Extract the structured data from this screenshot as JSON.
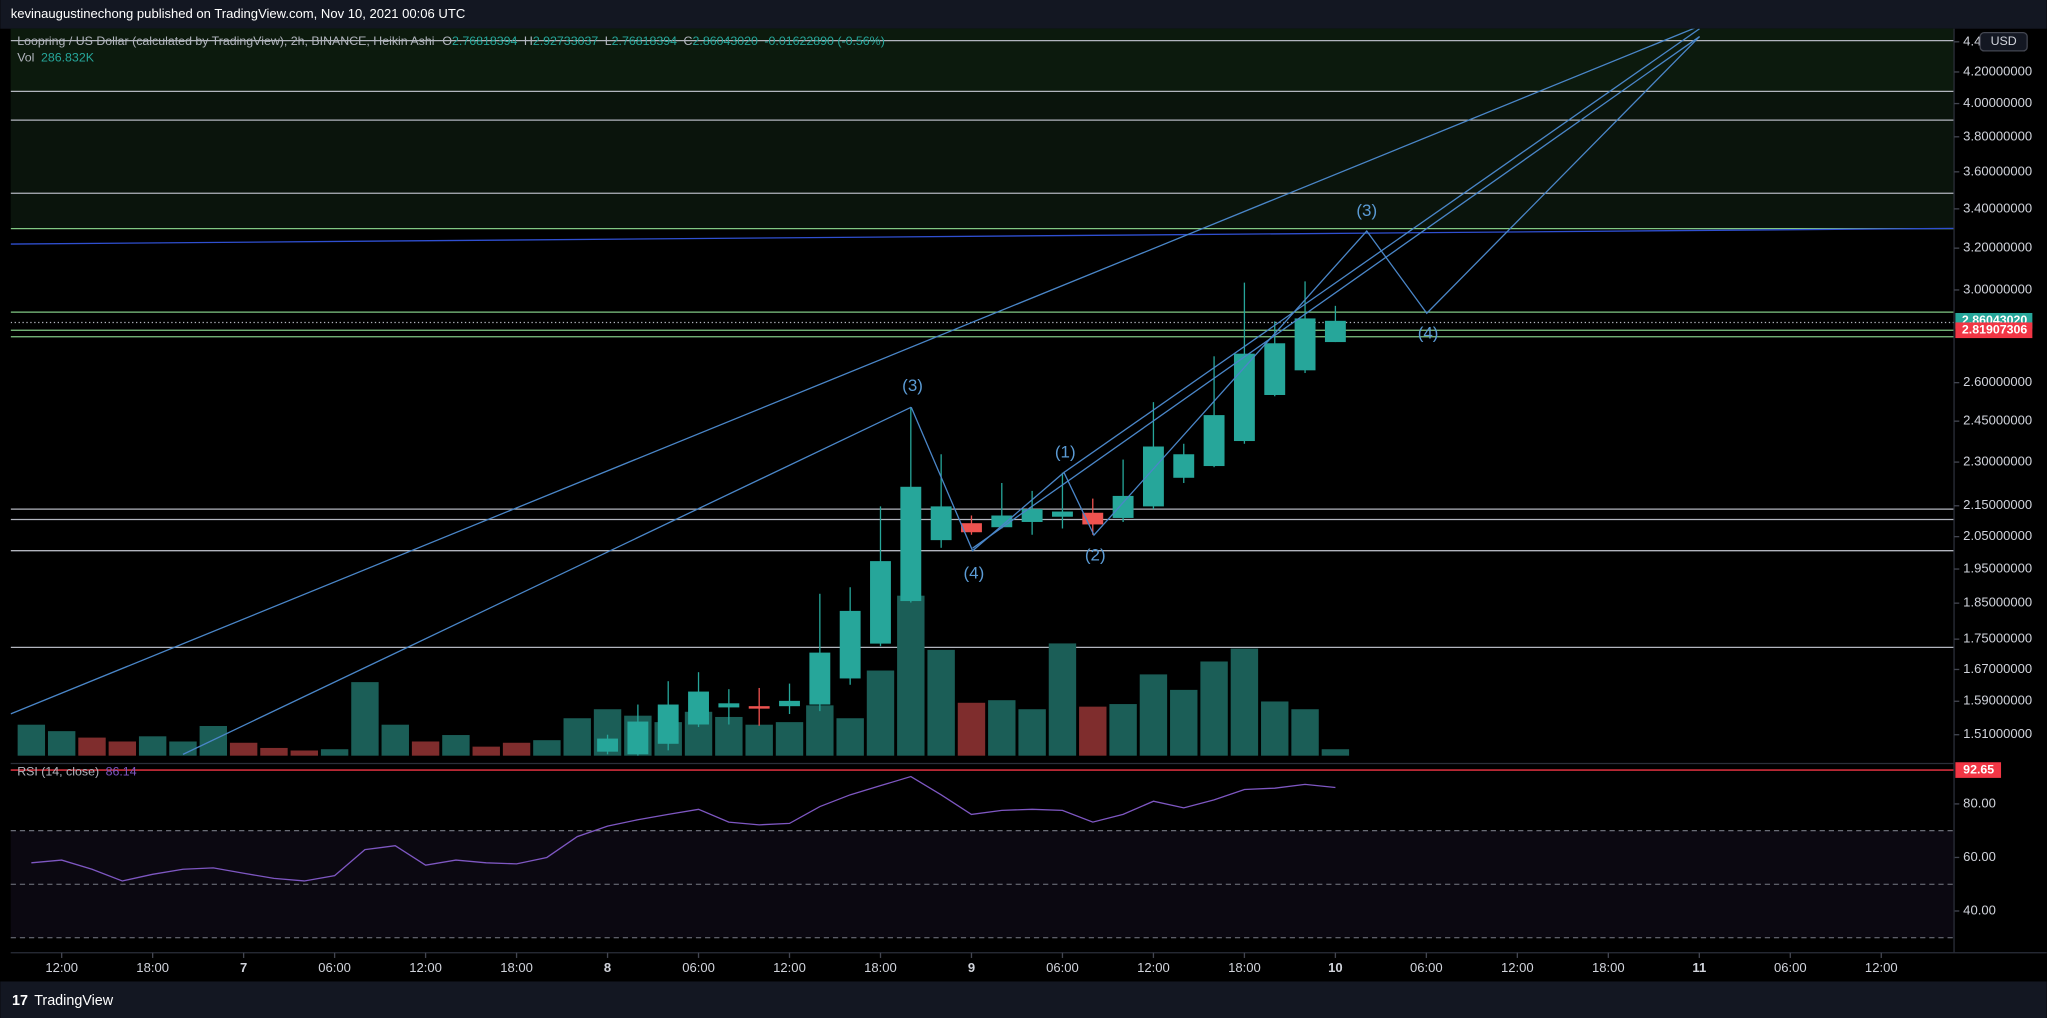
{
  "header": {
    "publisher": "kevinaugustinechong published on TradingView.com, Nov 10, 2021 00:06 UTC"
  },
  "footer": {
    "brand": "TradingView"
  },
  "chart_data": {
    "type": "candlestick",
    "title": "Loopring / US Dollar (calculated by TradingView), 2h, BINANCE, Heikin Ashi",
    "ohlc_legend": [
      {
        "key": "O",
        "value": "2.76818394"
      },
      {
        "key": "H",
        "value": "2.92733037"
      },
      {
        "key": "L",
        "value": "2.76818394"
      },
      {
        "key": "C",
        "value": "2.86043020"
      }
    ],
    "change": "-0.01622890 (-0.56%)",
    "currency": "USD",
    "x": [
      48,
      50,
      52,
      54,
      56,
      58,
      60,
      62,
      64,
      66,
      68,
      70,
      72,
      74,
      76,
      78,
      80,
      82,
      84,
      86,
      88,
      90,
      92,
      94,
      96
    ],
    "open": [
      1.471,
      1.465,
      1.489,
      1.534,
      1.575,
      1.578,
      1.578,
      1.582,
      1.647,
      1.738,
      1.856,
      2.039,
      2.093,
      2.08,
      2.097,
      2.114,
      2.127,
      2.11,
      2.148,
      2.245,
      2.286,
      2.376,
      2.551,
      2.65,
      2.76818394
    ],
    "high": [
      1.51,
      1.582,
      1.64,
      1.663,
      1.62,
      1.623,
      1.634,
      1.877,
      1.896,
      2.148,
      2.503,
      2.328,
      2.118,
      2.227,
      2.2,
      2.263,
      2.174,
      2.309,
      2.523,
      2.366,
      2.708,
      3.034,
      2.858,
      3.04,
      2.92733037
    ],
    "low": [
      1.465,
      1.462,
      1.474,
      1.528,
      1.534,
      1.531,
      1.559,
      1.566,
      1.631,
      1.731,
      1.852,
      2.015,
      2.056,
      2.076,
      2.056,
      2.076,
      2.056,
      2.097,
      2.139,
      2.227,
      2.282,
      2.366,
      2.546,
      2.639,
      2.76818394
    ],
    "close": [
      1.501,
      1.541,
      1.582,
      1.614,
      1.585,
      1.572,
      1.591,
      1.714,
      1.828,
      1.974,
      2.214,
      2.148,
      2.064,
      2.118,
      2.139,
      2.131,
      2.089,
      2.183,
      2.356,
      2.328,
      2.473,
      2.719,
      2.763,
      2.871,
      2.8604302
    ],
    "up_color": "#26a69a",
    "down_color": "#ef5350",
    "xlim": [
      8.64,
      136.8
    ],
    "xticks": [
      {
        "value": 12,
        "label": "12:00"
      },
      {
        "value": 18,
        "label": "18:00"
      },
      {
        "value": 24,
        "label": "7"
      },
      {
        "value": 30,
        "label": "06:00"
      },
      {
        "value": 36,
        "label": "12:00"
      },
      {
        "value": 42,
        "label": "18:00"
      },
      {
        "value": 48,
        "label": "8"
      },
      {
        "value": 54,
        "label": "06:00"
      },
      {
        "value": 60,
        "label": "12:00"
      },
      {
        "value": 66,
        "label": "18:00"
      },
      {
        "value": 72,
        "label": "9"
      },
      {
        "value": 78,
        "label": "06:00"
      },
      {
        "value": 84,
        "label": "12:00"
      },
      {
        "value": 90,
        "label": "18:00"
      },
      {
        "value": 96,
        "label": "10"
      },
      {
        "value": 102,
        "label": "06:00"
      },
      {
        "value": 108,
        "label": "12:00"
      },
      {
        "value": 114,
        "label": "18:00"
      },
      {
        "value": 120,
        "label": "11"
      },
      {
        "value": 126,
        "label": "06:00"
      },
      {
        "value": 132,
        "label": "12:00"
      }
    ],
    "ylim": [
      1.459,
      4.49
    ],
    "log_scale": true,
    "grid": false,
    "yticks": [
      4.4,
      {
        "value": 4.2,
        "label": "4.20000000"
      },
      {
        "value": 4.0,
        "label": "4.00000000"
      },
      {
        "value": 3.8,
        "label": "3.80000000"
      },
      {
        "value": 3.6,
        "label": "3.60000000"
      },
      {
        "value": 3.4,
        "label": "3.40000000"
      },
      {
        "value": 3.2,
        "label": "3.20000000"
      },
      {
        "value": 3.0,
        "label": "3.00000000"
      },
      {
        "value": 2.6,
        "label": "2.60000000"
      },
      {
        "value": 2.45,
        "label": "2.45000000"
      },
      {
        "value": 2.3,
        "label": "2.30000000"
      },
      {
        "value": 2.15,
        "label": "2.15000000"
      },
      {
        "value": 2.05,
        "label": "2.05000000"
      },
      {
        "value": 1.95,
        "label": "1.95000000"
      },
      {
        "value": 1.85,
        "label": "1.85000000"
      },
      {
        "value": 1.75,
        "label": "1.75000000"
      },
      {
        "value": 1.67,
        "label": "1.67000000"
      },
      {
        "value": 1.59,
        "label": "1.59000000"
      },
      {
        "value": 1.51,
        "label": "1.51000000"
      }
    ],
    "price_labels": [
      {
        "value": 2.8604302,
        "label": "2.86043020",
        "color": "#26a69a"
      },
      {
        "value": 2.81907306,
        "label": "2.81907306",
        "color": "#f23645"
      }
    ],
    "levels": [
      {
        "value": 4.408,
        "color": "#b2b5be"
      },
      {
        "value": 4.076,
        "color": "#b2b5be"
      },
      {
        "value": 3.899,
        "color": "#b2b5be"
      },
      {
        "value": 3.483,
        "color": "#b2b5be"
      },
      {
        "value": 3.298,
        "color": "#81c784"
      },
      {
        "value": 2.899,
        "color": "#81c784"
      },
      {
        "value": 2.853,
        "color": "#b2b5be",
        "style": "dotted"
      },
      {
        "value": 2.819,
        "color": "#81c784"
      },
      {
        "value": 2.791,
        "color": "#81c784"
      },
      {
        "value": 2.139,
        "color": "#b2b5be"
      },
      {
        "value": 2.105,
        "color": "#b2b5be"
      },
      {
        "value": 2.006,
        "color": "#b2b5be"
      },
      {
        "value": 1.728,
        "color": "#b2b5be"
      }
    ],
    "volume": {
      "name": "Vol",
      "value_label": "286.832K",
      "x": [
        10,
        12,
        14,
        16,
        18,
        20,
        22,
        24,
        26,
        28,
        30,
        32,
        34,
        36,
        38,
        40,
        42,
        44,
        46,
        48,
        50,
        52,
        54,
        56,
        58,
        60,
        62,
        64,
        66,
        68,
        70,
        72,
        74,
        76,
        78,
        80,
        82,
        84,
        86,
        88,
        90,
        92,
        94,
        96
      ],
      "values": [
        1378,
        1091,
        804,
        631,
        861,
        631,
        1320,
        574,
        344,
        230,
        287,
        3272,
        1378,
        631,
        918,
        402,
        574,
        689,
        1665,
        2066,
        1779,
        1492,
        1952,
        1722,
        1378,
        1492,
        2239,
        1665,
        3788,
        7118,
        4707,
        2353,
        2468,
        2066,
        4994,
        2181,
        2296,
        3616,
        2927,
        4190,
        4764,
        2411,
        2066,
        286.832
      ],
      "colors": [
        "#1b5e57",
        "#1b5e57",
        "#7f2d2d",
        "#7f2d2d",
        "#1b5e57",
        "#1b5e57",
        "#1b5e57",
        "#7f2d2d",
        "#7f2d2d",
        "#7f2d2d",
        "#1b5e57",
        "#1b5e57",
        "#1b5e57",
        "#7f2d2d",
        "#1b5e57",
        "#7f2d2d",
        "#7f2d2d",
        "#1b5e57",
        "#1b5e57",
        "#1b5e57",
        "#1b5e57",
        "#1b5e57",
        "#1b5e57",
        "#1b5e57",
        "#1b5e57",
        "#1b5e57",
        "#1b5e57",
        "#1b5e57",
        "#1b5e57",
        "#1b5e57",
        "#1b5e57",
        "#7f2d2d",
        "#1b5e57",
        "#1b5e57",
        "#1b5e57",
        "#7f2d2d",
        "#1b5e57",
        "#1b5e57",
        "#1b5e57",
        "#1b5e57",
        "#1b5e57",
        "#1b5e57",
        "#1b5e57",
        "#1b5e57"
      ],
      "ylim": [
        0,
        7200
      ]
    },
    "rsi": {
      "name": "RSI (14, close)",
      "value_label": "86.14",
      "color": "#7e57c2",
      "x": [
        10,
        12,
        14,
        16,
        18,
        20,
        22,
        24,
        26,
        28,
        30,
        32,
        34,
        36,
        38,
        40,
        42,
        44,
        46,
        48,
        50,
        52,
        54,
        56,
        58,
        60,
        62,
        64,
        66,
        68,
        70,
        72,
        74,
        76,
        78,
        80,
        82,
        84,
        86,
        88,
        90,
        92,
        94,
        96
      ],
      "values": [
        58.0,
        59.0,
        55.6,
        51.2,
        53.7,
        55.6,
        56.1,
        54.1,
        52.2,
        51.2,
        53.2,
        62.9,
        64.4,
        57.1,
        59.0,
        58.0,
        57.6,
        60.0,
        67.8,
        71.7,
        74.1,
        76.1,
        78.0,
        73.2,
        72.2,
        72.7,
        79.0,
        83.4,
        86.8,
        90.2,
        83.4,
        76.1,
        77.6,
        78.0,
        77.6,
        73.2,
        76.1,
        81.0,
        78.5,
        81.5,
        85.4,
        85.9,
        87.3,
        86.14
      ],
      "ylim": [
        24.4,
        95.1
      ],
      "yticks": [
        {
          "value": 80,
          "label": "80.00"
        },
        {
          "value": 60,
          "label": "60.00"
        },
        {
          "value": 40,
          "label": "40.00"
        }
      ],
      "bands": [
        70,
        50,
        30
      ],
      "marker": {
        "value": 92.65,
        "color": "#f23645"
      }
    },
    "annotations": [
      "(3)",
      "(4)",
      "(1)",
      "(2)",
      "(3)",
      "(4)"
    ]
  }
}
